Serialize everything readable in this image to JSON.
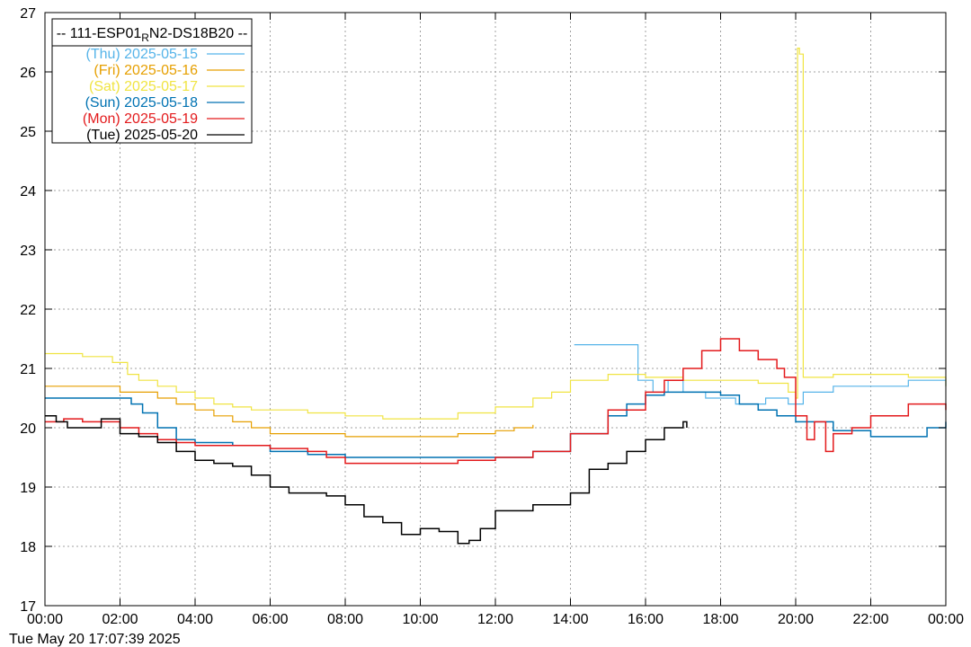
{
  "chart_data": {
    "type": "line",
    "legend_title_parts": [
      "-- 111-ESP01",
      "R",
      "N2-DS18B20 --"
    ],
    "legend_placement": "top-left",
    "grid": true,
    "x_unit": "hours",
    "xlim": [
      0,
      24
    ],
    "ylim": [
      17,
      27
    ],
    "x_ticks": [
      0,
      2,
      4,
      6,
      8,
      10,
      12,
      14,
      16,
      18,
      20,
      22,
      24
    ],
    "x_tick_labels": [
      "00:00",
      "02:00",
      "04:00",
      "06:00",
      "08:00",
      "10:00",
      "12:00",
      "14:00",
      "16:00",
      "18:00",
      "20:00",
      "22:00",
      "00:00"
    ],
    "y_ticks": [
      17,
      18,
      19,
      20,
      21,
      22,
      23,
      24,
      25,
      26,
      27
    ],
    "y_tick_labels": [
      "17",
      "18",
      "19",
      "20",
      "21",
      "22",
      "23",
      "24",
      "25",
      "26",
      "27"
    ],
    "series": [
      {
        "name": "(Thu) 2025-05-15",
        "color": "#56b4e9",
        "x": [
          14.1,
          15.4,
          15.6,
          15.8,
          16.2,
          16.6,
          17.0,
          17.6,
          18.4,
          19.2,
          19.8,
          20.2,
          21.0,
          22.0,
          23.0,
          24.0
        ],
        "y": [
          21.4,
          21.4,
          21.4,
          20.8,
          20.6,
          20.8,
          20.6,
          20.5,
          20.4,
          20.5,
          20.4,
          20.6,
          20.7,
          20.7,
          20.8,
          20.7
        ]
      },
      {
        "name": "(Fri) 2025-05-16",
        "color": "#e69f00",
        "x": [
          0,
          1.0,
          2.0,
          2.5,
          3.0,
          3.5,
          4.0,
          4.5,
          5.0,
          5.5,
          6.0,
          7.0,
          8.0,
          9.0,
          10.0,
          11.0,
          12.0,
          12.5,
          13.0
        ],
        "y": [
          20.7,
          20.7,
          20.6,
          20.6,
          20.5,
          20.4,
          20.3,
          20.2,
          20.1,
          20.0,
          19.9,
          19.9,
          19.85,
          19.85,
          19.85,
          19.9,
          19.95,
          20.0,
          20.05
        ]
      },
      {
        "name": "(Sat) 2025-05-17",
        "color": "#f0e442",
        "x": [
          0,
          1.0,
          1.8,
          2.2,
          2.5,
          3.0,
          3.5,
          4.0,
          4.5,
          5.0,
          5.5,
          6.0,
          7.0,
          8.0,
          9.0,
          10.0,
          11.0,
          12.0,
          13.0,
          13.5,
          14.0,
          15.0,
          15.5,
          16.0,
          17.0,
          18.0,
          19.0,
          19.8,
          20.0,
          20.05,
          20.1,
          20.2,
          21.0,
          22.0,
          23.0,
          24.0
        ],
        "y": [
          21.25,
          21.2,
          21.1,
          20.9,
          20.8,
          20.7,
          20.6,
          20.5,
          20.4,
          20.35,
          20.3,
          20.3,
          20.25,
          20.2,
          20.15,
          20.15,
          20.25,
          20.35,
          20.5,
          20.6,
          20.8,
          20.9,
          20.9,
          20.85,
          20.8,
          20.8,
          20.75,
          20.6,
          20.5,
          26.4,
          26.3,
          20.85,
          20.9,
          20.9,
          20.85,
          20.7
        ]
      },
      {
        "name": "(Sun) 2025-05-18",
        "color": "#0072b2",
        "x": [
          0,
          0.5,
          1.0,
          1.5,
          2.0,
          2.3,
          2.6,
          3.0,
          3.5,
          4.0,
          5.0,
          6.0,
          7.0,
          8.0,
          9.0,
          10.0,
          11.0,
          12.0,
          13.0,
          14.0,
          15.0,
          15.5,
          16.0,
          16.5,
          17.0,
          18.0,
          18.5,
          19.0,
          19.5,
          20.0,
          21.0,
          22.0,
          23.0,
          23.5,
          24.0
        ],
        "y": [
          20.5,
          20.5,
          20.5,
          20.5,
          20.5,
          20.4,
          20.25,
          20.0,
          19.8,
          19.75,
          19.7,
          19.6,
          19.55,
          19.5,
          19.5,
          19.5,
          19.5,
          19.5,
          19.6,
          19.9,
          20.2,
          20.4,
          20.55,
          20.6,
          20.6,
          20.55,
          20.4,
          20.3,
          20.2,
          20.1,
          19.95,
          19.85,
          19.85,
          20.0,
          20.1
        ]
      },
      {
        "name": "(Mon) 2025-05-19",
        "color": "#e31a1c",
        "x": [
          0,
          0.5,
          1.0,
          1.5,
          2.0,
          2.5,
          3.0,
          3.5,
          4.0,
          5.0,
          6.0,
          7.0,
          7.5,
          8.0,
          9.0,
          10.0,
          11.0,
          12.0,
          13.0,
          14.0,
          15.0,
          16.0,
          16.5,
          17.0,
          17.5,
          18.0,
          18.5,
          19.0,
          19.5,
          19.7,
          20.0,
          20.3,
          20.5,
          20.8,
          21.0,
          21.5,
          22.0,
          23.0,
          24.0
        ],
        "y": [
          20.1,
          20.15,
          20.1,
          20.1,
          20.0,
          19.9,
          19.8,
          19.75,
          19.7,
          19.7,
          19.65,
          19.6,
          19.5,
          19.4,
          19.4,
          19.4,
          19.45,
          19.5,
          19.6,
          19.9,
          20.3,
          20.6,
          20.8,
          21.0,
          21.3,
          21.5,
          21.3,
          21.15,
          21.0,
          20.85,
          20.2,
          19.8,
          20.1,
          19.6,
          19.9,
          20.0,
          20.2,
          20.4,
          20.3
        ]
      },
      {
        "name": "(Tue) 2025-05-20",
        "color": "#000000",
        "x": [
          0,
          0.3,
          0.6,
          1.0,
          1.5,
          2.0,
          2.5,
          3.0,
          3.5,
          4.0,
          4.5,
          5.0,
          5.5,
          6.0,
          6.5,
          7.0,
          7.5,
          8.0,
          8.5,
          9.0,
          9.5,
          10.0,
          10.5,
          11.0,
          11.3,
          11.6,
          12.0,
          12.5,
          13.0,
          13.5,
          14.0,
          14.5,
          15.0,
          15.5,
          16.0,
          16.5,
          17.0,
          17.1
        ],
        "y": [
          20.2,
          20.1,
          20.0,
          20.0,
          20.15,
          19.9,
          19.85,
          19.75,
          19.6,
          19.45,
          19.4,
          19.35,
          19.2,
          19.0,
          18.9,
          18.9,
          18.85,
          18.7,
          18.5,
          18.4,
          18.2,
          18.3,
          18.25,
          18.05,
          18.1,
          18.3,
          18.6,
          18.6,
          18.7,
          18.7,
          18.9,
          19.3,
          19.4,
          19.6,
          19.8,
          20.0,
          20.1,
          20.0
        ]
      }
    ]
  },
  "timestamp": "Tue May 20 17:07:39 2025"
}
